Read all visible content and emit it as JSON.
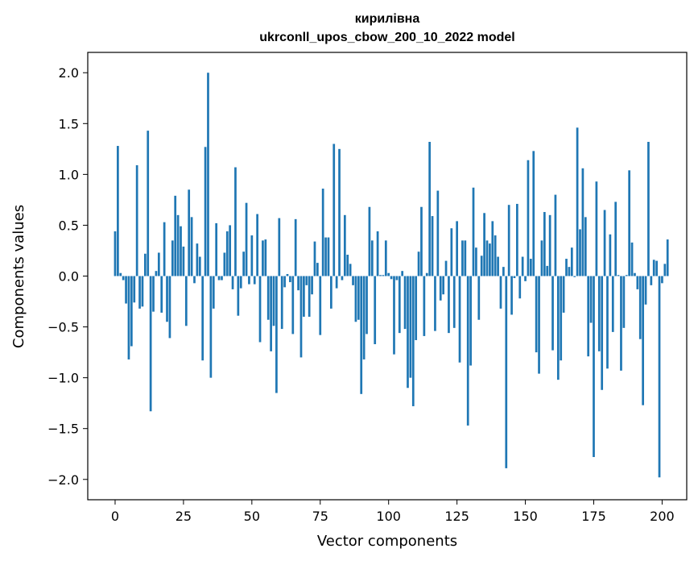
{
  "chart_data": {
    "type": "bar",
    "title": "кирилівна",
    "subtitle": "ukrconll_upos_cbow_200_10_2022 model",
    "xlabel": "Vector components",
    "ylabel": "Components values",
    "xlim": [
      -10,
      209
    ],
    "ylim": [
      -2.2,
      2.2
    ],
    "xticks": [
      0,
      25,
      50,
      75,
      100,
      125,
      150,
      175,
      200
    ],
    "yticks": [
      -2.0,
      -1.5,
      -1.0,
      -0.5,
      0.0,
      0.5,
      1.0,
      1.5,
      2.0
    ],
    "grid": false,
    "bar_color": "#1f77b4",
    "values": [
      0.44,
      1.28,
      0.03,
      -0.04,
      -0.27,
      -0.82,
      -0.69,
      -0.26,
      1.09,
      -0.32,
      -0.3,
      0.22,
      1.43,
      -1.33,
      -0.35,
      0.05,
      0.23,
      -0.36,
      0.53,
      -0.45,
      -0.61,
      0.35,
      0.79,
      0.6,
      0.49,
      0.29,
      -0.49,
      0.85,
      0.58,
      -0.07,
      0.32,
      0.19,
      -0.83,
      1.27,
      2.0,
      -1.0,
      -0.32,
      0.52,
      -0.04,
      -0.04,
      0.23,
      0.44,
      0.5,
      -0.13,
      1.07,
      -0.39,
      -0.12,
      0.24,
      0.72,
      -0.08,
      0.4,
      -0.08,
      0.61,
      -0.65,
      0.35,
      0.36,
      -0.43,
      -0.74,
      -0.49,
      -1.15,
      0.57,
      -0.52,
      -0.11,
      0.02,
      -0.06,
      -0.57,
      0.56,
      -0.14,
      -0.8,
      -0.4,
      -0.09,
      -0.4,
      -0.18,
      0.34,
      0.13,
      -0.58,
      0.86,
      0.38,
      0.38,
      -0.32,
      1.3,
      -0.12,
      1.25,
      -0.04,
      0.6,
      0.21,
      0.12,
      -0.09,
      -0.45,
      -0.43,
      -1.16,
      -0.82,
      -0.57,
      0.68,
      0.35,
      -0.67,
      0.44,
      0.01,
      0.01,
      0.35,
      0.03,
      -0.03,
      -0.77,
      -0.04,
      -0.56,
      0.05,
      -0.52,
      -1.1,
      -1.0,
      -1.28,
      -0.63,
      0.24,
      0.68,
      -0.59,
      0.03,
      1.32,
      0.59,
      -0.54,
      0.84,
      -0.24,
      -0.18,
      0.15,
      -0.56,
      0.47,
      -0.51,
      0.54,
      -0.85,
      0.35,
      0.35,
      -1.47,
      -0.88,
      0.87,
      0.28,
      -0.43,
      0.2,
      0.62,
      0.35,
      0.32,
      0.54,
      0.4,
      0.19,
      -0.32,
      0.09,
      -1.89,
      0.7,
      -0.38,
      -0.02,
      0.71,
      -0.22,
      0.19,
      -0.05,
      1.14,
      0.17,
      1.23,
      -0.75,
      -0.96,
      0.35,
      0.63,
      0.1,
      0.6,
      -0.73,
      0.8,
      -1.02,
      -0.83,
      -0.36,
      0.17,
      0.09,
      0.28,
      -0.01,
      1.46,
      0.46,
      1.06,
      0.58,
      -0.79,
      -0.46,
      -1.78,
      0.93,
      -0.74,
      -1.12,
      0.65,
      -0.91,
      0.41,
      -0.55,
      0.73,
      0.01,
      -0.93,
      -0.51,
      0.01,
      1.04,
      0.33,
      0.03,
      -0.13,
      -0.62,
      -1.27,
      -0.28,
      1.32,
      -0.09,
      0.16,
      0.15,
      -1.98,
      -0.07,
      0.12,
      0.36
    ]
  }
}
